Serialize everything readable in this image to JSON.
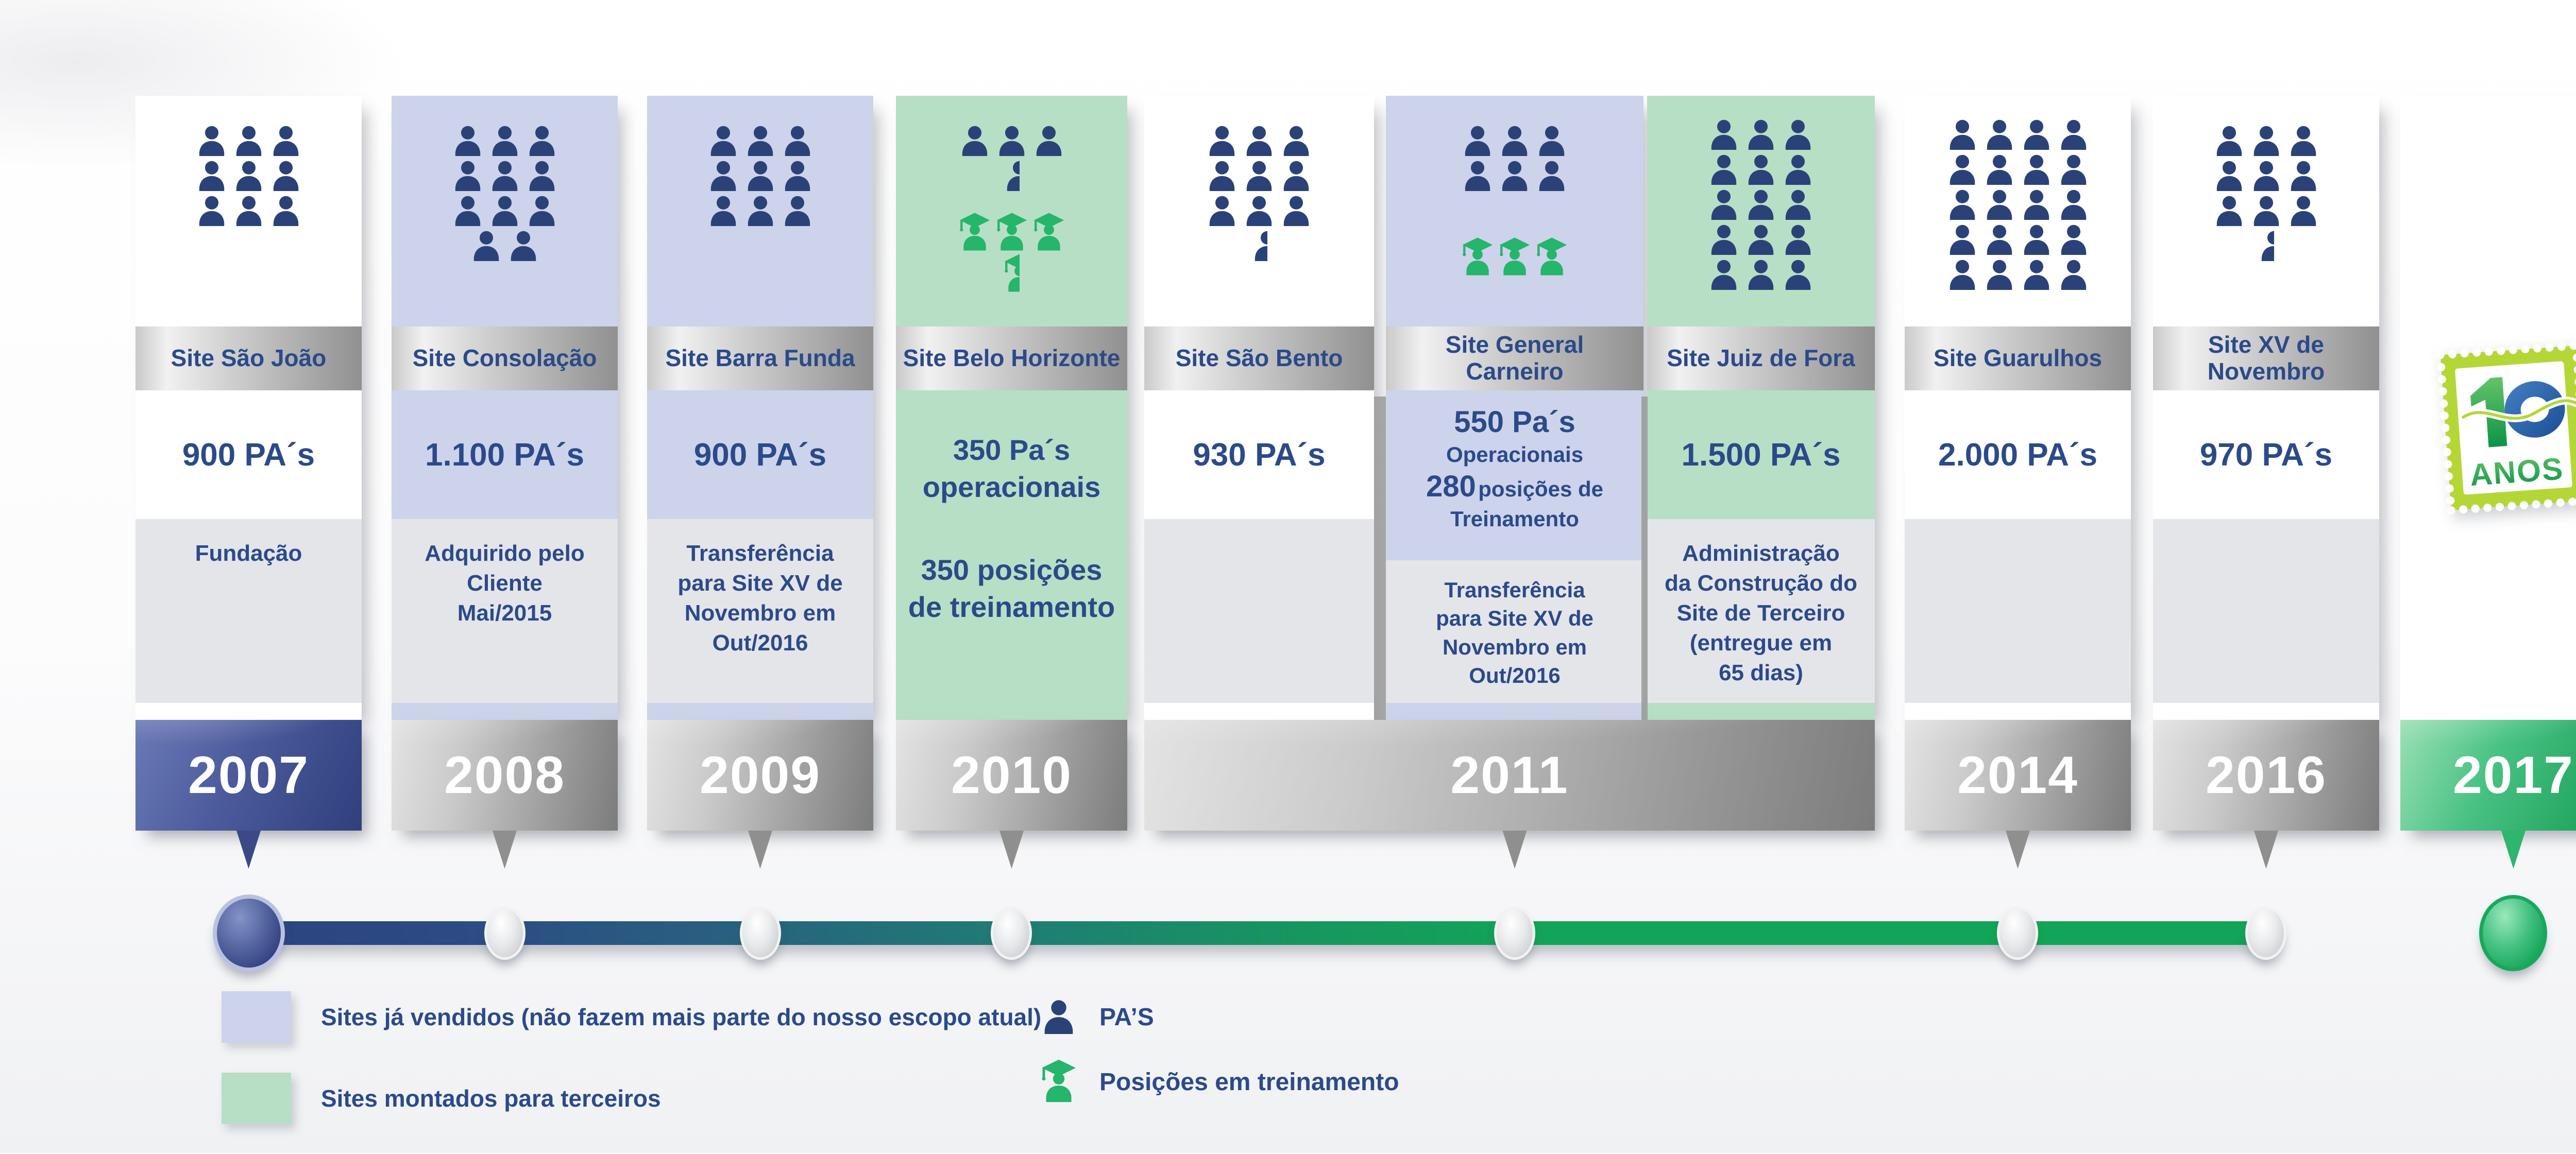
{
  "columns": [
    {
      "name": "Site São João",
      "pa": "900 PA´s",
      "event": "Fundação",
      "icons": [
        {
          "type": "person",
          "rows": [
            3,
            3,
            3
          ]
        }
      ]
    },
    {
      "name": "Site Consolação",
      "pa": "1.100 PA´s",
      "event": "Adquirido pelo\nCliente\nMai/2015",
      "icons": [
        {
          "type": "person",
          "rows": [
            3,
            3,
            3,
            2
          ]
        }
      ]
    },
    {
      "name": "Site Barra Funda",
      "pa": "900 PA´s",
      "event": "Transferência\npara Site XV de\nNovembro em\nOut/2016",
      "icons": [
        {
          "type": "person",
          "rows": [
            3,
            3,
            3
          ]
        }
      ]
    },
    {
      "name": "Site Belo Horizonte",
      "pa_blocks": [
        "350 Pa´s\noperacionais",
        "350 posições\nde treinamento"
      ],
      "icons": [
        {
          "type": "person",
          "rows": [
            3,
            0.5
          ]
        },
        {
          "type": "graduate",
          "rows": [
            3,
            0.5
          ]
        }
      ]
    },
    {
      "name": "Site São Bento",
      "pa": "930 PA´s",
      "event": "",
      "icons": [
        {
          "type": "person",
          "rows": [
            3,
            3,
            3,
            0.5
          ]
        }
      ]
    },
    {
      "name": "Site General\nCarneiro",
      "pa_rich": {
        "big1": "550 Pa´s",
        "small1": "Operacionais",
        "big2": "280",
        "small2": "posições de",
        "small3": "Treinamento"
      },
      "event": "Transferência\npara Site XV de\nNovembro em\nOut/2016",
      "icons": [
        {
          "type": "person",
          "rows": [
            3,
            3
          ]
        },
        {
          "type": "graduate",
          "rows": [
            3
          ]
        }
      ]
    },
    {
      "name": "Site Juiz de Fora",
      "pa": "1.500 PA´s",
      "event": "Administração\nda Construção do\nSite de Terceiro\n(entregue em\n65 dias)",
      "icons": [
        {
          "type": "person",
          "rows": [
            3,
            3,
            3,
            3,
            3
          ]
        }
      ]
    },
    {
      "name": "Site Guarulhos",
      "pa": "2.000 PA´s",
      "event": "",
      "icons": [
        {
          "type": "person",
          "rows": [
            4,
            4,
            4,
            4,
            4
          ]
        }
      ]
    },
    {
      "name": "Site XV de\nNovembro",
      "pa": "970 PA´s",
      "event": "",
      "icons": [
        {
          "type": "person",
          "rows": [
            3,
            3,
            3,
            0.5
          ]
        }
      ]
    }
  ],
  "years": [
    {
      "label": "2007"
    },
    {
      "label": "2008"
    },
    {
      "label": "2009"
    },
    {
      "label": "2010"
    },
    {
      "label": "2011"
    },
    {
      "label": "2014"
    },
    {
      "label": "2016"
    },
    {
      "label": "2017"
    }
  ],
  "logo": {
    "number": "10",
    "label": "ANOS"
  },
  "legend": {
    "swatches": [
      {
        "color": "#ccd3eb",
        "label": "Sites já vendidos (não fazem mais parte do nosso escopo atual)"
      },
      {
        "color": "#b7dfc5",
        "label": "Sites montados para terceiros"
      }
    ],
    "icons": [
      {
        "icon": "person-icon",
        "label": "PA’S"
      },
      {
        "icon": "graduate-icon",
        "label": "Posições em treinamento"
      }
    ]
  },
  "colors": {
    "navy_icon": "#2b4278",
    "navy_text": "#2b4a8a",
    "green_icon": "#25b56b",
    "lavender_bg": "#ccd3eb",
    "green_bg": "#b7dfc5",
    "gray_panel": "#e4e5e9",
    "timeline_start": "#2c4480",
    "timeline_end": "#12a557"
  }
}
